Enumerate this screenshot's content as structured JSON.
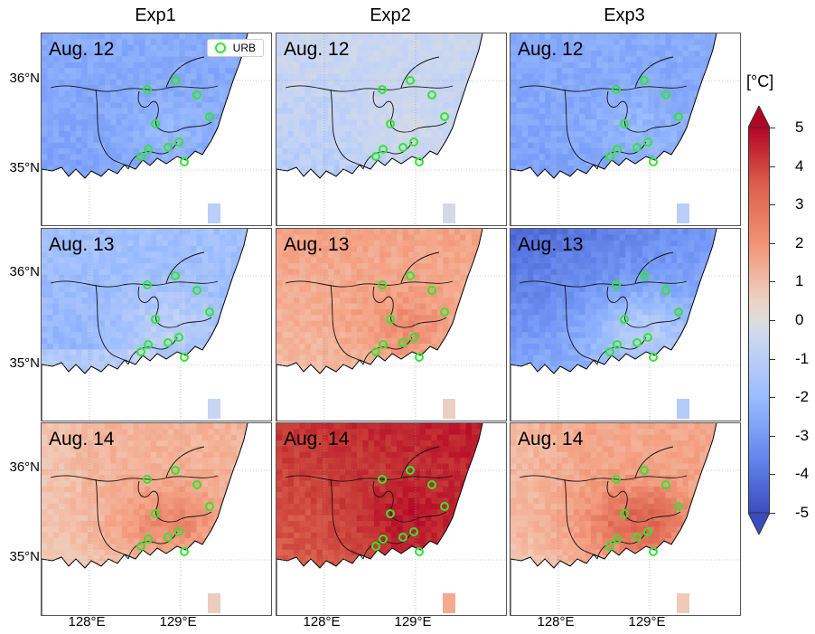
{
  "columns": [
    "Exp1",
    "Exp2",
    "Exp3"
  ],
  "rows": [
    "Aug. 12",
    "Aug. 13",
    "Aug. 14"
  ],
  "legend": {
    "label": "URB",
    "marker_color": "#2ee82e",
    "marker": "hollow-circle"
  },
  "lat_labels": [
    "36°N",
    "35°N"
  ],
  "lon_labels": [
    "128°E",
    "129°E"
  ],
  "colorbar": {
    "unit": "[°C]",
    "min": -5,
    "max": 5,
    "ticks": [
      "5",
      "4",
      "3",
      "2",
      "1",
      "0",
      "-1",
      "-2",
      "-3",
      "-4",
      "-5"
    ],
    "colormap": "coolwarm (blue to red)",
    "extend": "both"
  },
  "panel_anomaly_degC": {
    "Exp1": {
      "Aug. 12": -2.5,
      "Aug. 13": -1.8,
      "Aug. 14": 1.5
    },
    "Exp2": {
      "Aug. 12": -0.7,
      "Aug. 13": 1.2,
      "Aug. 14": 3.5
    },
    "Exp3": {
      "Aug. 12": -2.5,
      "Aug. 13": -2.8,
      "Aug. 14": 1.8
    }
  }
}
